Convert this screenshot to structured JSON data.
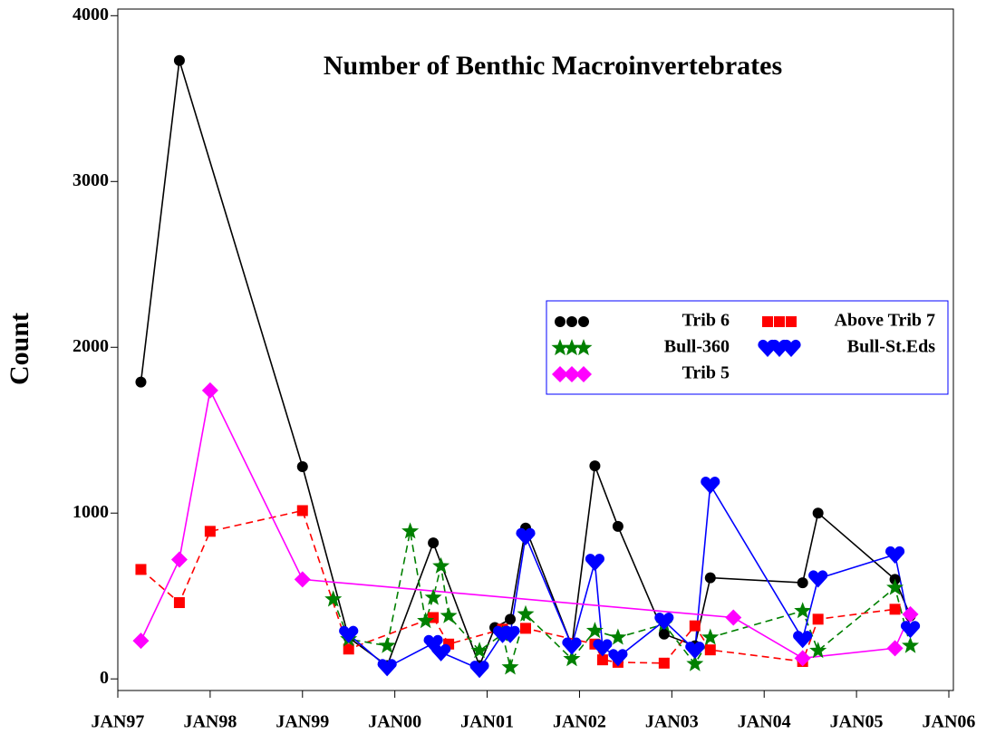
{
  "chart_data": {
    "type": "line",
    "title": "Number of Benthic Macroinvertebrates",
    "y_label": "Count",
    "xlim": [
      "1997-01",
      "2006-01"
    ],
    "xticks": [
      {
        "value": "1997-01",
        "label": "JAN97"
      },
      {
        "value": "1998-01",
        "label": "JAN98"
      },
      {
        "value": "1999-01",
        "label": "JAN99"
      },
      {
        "value": "2000-01",
        "label": "JAN00"
      },
      {
        "value": "2001-01",
        "label": "JAN01"
      },
      {
        "value": "2002-01",
        "label": "JAN02"
      },
      {
        "value": "2003-01",
        "label": "JAN03"
      },
      {
        "value": "2004-01",
        "label": "JAN04"
      },
      {
        "value": "2005-01",
        "label": "JAN05"
      },
      {
        "value": "2006-01",
        "label": "JAN06"
      }
    ],
    "ylim": [
      -70,
      4040
    ],
    "yticks": [
      0,
      1000,
      2000,
      3000,
      4000
    ],
    "legend": "upper-right",
    "series": [
      {
        "name": "Trib 6",
        "color": "#000000",
        "marker": "circle",
        "dash": false,
        "x": [
          "1997-04",
          "1997-09",
          "1999-01",
          "1999-07",
          "1999-12",
          "2000-06",
          "2000-12",
          "2001-02",
          "2001-04",
          "2001-06",
          "2001-12",
          "2002-03",
          "2002-06",
          "2002-12",
          "2003-04",
          "2003-06",
          "2004-06",
          "2004-08",
          "2005-06",
          "2005-08"
        ],
        "values": [
          1790,
          3730,
          1280,
          250,
          80,
          820,
          80,
          310,
          360,
          910,
          200,
          1285,
          920,
          270,
          200,
          610,
          580,
          1000,
          600,
          380
        ]
      },
      {
        "name": "Above Trib 7",
        "color": "#ff0000",
        "marker": "square",
        "dash": true,
        "x": [
          "1997-04",
          "1997-09",
          "1998-01",
          "1999-01",
          "1999-07",
          "2000-06",
          "2000-08",
          "2001-03",
          "2001-06",
          "2002-03",
          "2002-04",
          "2002-06",
          "2002-12",
          "2003-04",
          "2003-06",
          "2004-06",
          "2004-08",
          "2005-06"
        ],
        "values": [
          660,
          460,
          890,
          1015,
          180,
          370,
          210,
          300,
          305,
          210,
          115,
          100,
          95,
          320,
          175,
          105,
          360,
          420
        ]
      },
      {
        "name": "Bull-360",
        "color": "#008000",
        "marker": "star",
        "dash": true,
        "x": [
          "1999-05",
          "1999-07",
          "1999-12",
          "2000-03",
          "2000-05",
          "2000-06",
          "2000-07",
          "2000-08",
          "2000-12",
          "2001-03",
          "2001-04",
          "2001-06",
          "2001-12",
          "2002-03",
          "2002-06",
          "2002-12",
          "2003-04",
          "2003-06",
          "2004-06",
          "2004-08",
          "2005-06",
          "2005-08"
        ],
        "values": [
          480,
          240,
          200,
          890,
          350,
          490,
          680,
          380,
          170,
          270,
          70,
          390,
          120,
          290,
          250,
          330,
          90,
          250,
          410,
          170,
          550,
          200
        ]
      },
      {
        "name": "Bull-St.Eds",
        "color": "#0000ff",
        "marker": "heart",
        "dash": false,
        "x": [
          "1999-07",
          "1999-12",
          "2000-06",
          "2000-07",
          "2000-12",
          "2001-03",
          "2001-04",
          "2001-06",
          "2001-12",
          "2002-03",
          "2002-04",
          "2002-06",
          "2002-12",
          "2003-04",
          "2003-06",
          "2004-06",
          "2004-08",
          "2005-06",
          "2005-08"
        ],
        "values": [
          270,
          70,
          215,
          160,
          60,
          270,
          270,
          860,
          200,
          705,
          190,
          130,
          350,
          175,
          1170,
          240,
          605,
          750,
          300
        ]
      },
      {
        "name": "Trib 5",
        "color": "#ff00ff",
        "marker": "diamond",
        "dash": false,
        "x": [
          "1997-04",
          "1997-09",
          "1998-01",
          "1999-01",
          "2003-09",
          "2004-06",
          "2005-06",
          "2005-08"
        ],
        "values": [
          230,
          720,
          1740,
          600,
          370,
          125,
          185,
          390
        ]
      }
    ]
  }
}
